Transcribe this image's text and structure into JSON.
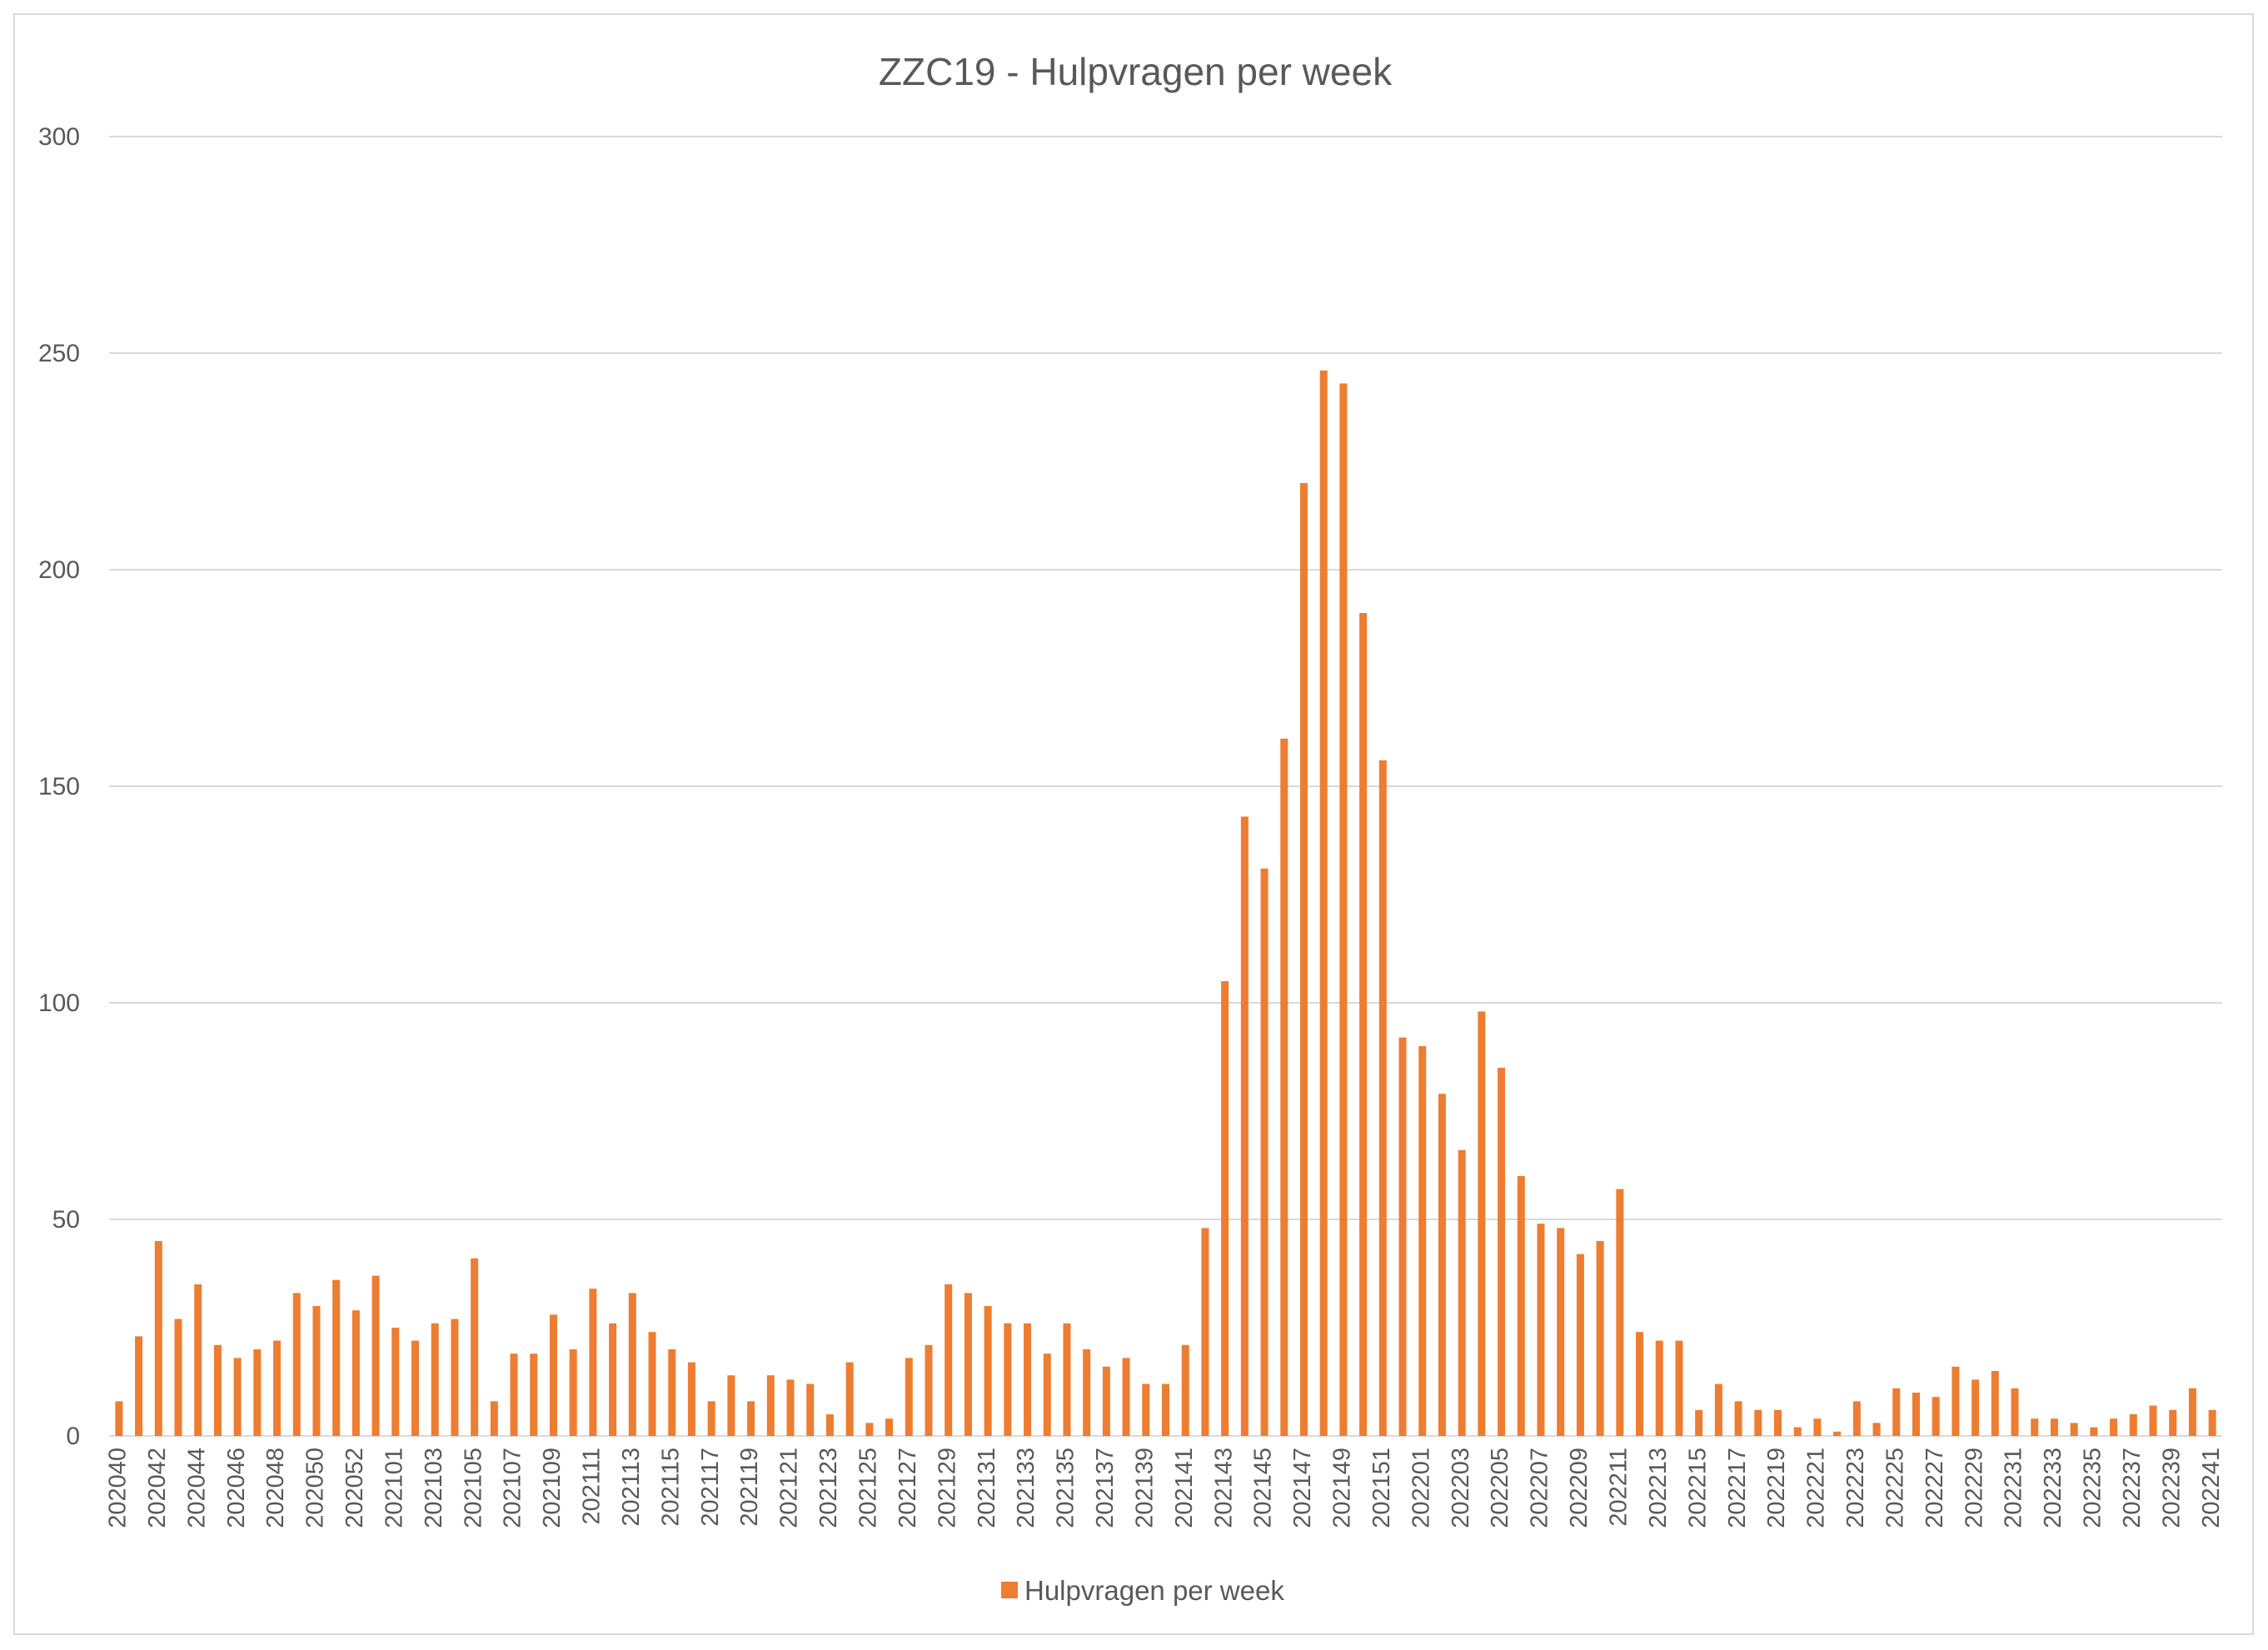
{
  "chart_data": {
    "type": "bar",
    "title": "ZZC19 - Hulpvragen per week",
    "xlabel": "",
    "ylabel": "",
    "ylim": [
      0,
      300
    ],
    "yticks": [
      0,
      50,
      100,
      150,
      200,
      250,
      300
    ],
    "grid": true,
    "legend_position": "bottom",
    "bar_color": "#ED7D31",
    "categories": [
      "202040",
      "202041",
      "202042",
      "202043",
      "202044",
      "202045",
      "202046",
      "202047",
      "202048",
      "202049",
      "202050",
      "202051",
      "202052",
      "202053",
      "202101",
      "202102",
      "202103",
      "202104",
      "202105",
      "202106",
      "202107",
      "202108",
      "202109",
      "202110",
      "202111",
      "202112",
      "202113",
      "202114",
      "202115",
      "202116",
      "202117",
      "202118",
      "202119",
      "202120",
      "202121",
      "202122",
      "202123",
      "202124",
      "202125",
      "202126",
      "202127",
      "202128",
      "202129",
      "202130",
      "202131",
      "202132",
      "202133",
      "202134",
      "202135",
      "202136",
      "202137",
      "202138",
      "202139",
      "202140",
      "202141",
      "202142",
      "202143",
      "202144",
      "202145",
      "202146",
      "202147",
      "202148",
      "202149",
      "202150",
      "202151",
      "202152",
      "202201",
      "202202",
      "202203",
      "202204",
      "202205",
      "202206",
      "202207",
      "202208",
      "202209",
      "202210",
      "202211",
      "202212",
      "202213",
      "202214",
      "202215",
      "202216",
      "202217",
      "202218",
      "202219",
      "202220",
      "202221",
      "202222",
      "202223",
      "202224",
      "202225",
      "202226",
      "202227",
      "202228",
      "202229",
      "202230",
      "202231",
      "202232",
      "202233",
      "202234",
      "202235",
      "202236",
      "202237",
      "202238",
      "202239",
      "202240",
      "202241"
    ],
    "tick_labels": [
      "202040",
      "202042",
      "202044",
      "202046",
      "202048",
      "202050",
      "202052",
      "202101",
      "202103",
      "202105",
      "202107",
      "202109",
      "202111",
      "202113",
      "202115",
      "202117",
      "202119",
      "202121",
      "202123",
      "202125",
      "202127",
      "202129",
      "202131",
      "202133",
      "202135",
      "202137",
      "202139",
      "202141",
      "202143",
      "202145",
      "202147",
      "202149",
      "202151",
      "202201",
      "202203",
      "202205",
      "202207",
      "202209",
      "202211",
      "202213",
      "202215",
      "202217",
      "202219",
      "202221",
      "202223",
      "202225",
      "202227",
      "202229",
      "202231",
      "202233",
      "202235",
      "202237",
      "202239",
      "202241"
    ],
    "series": [
      {
        "name": "Hulpvragen per week",
        "values": [
          8,
          23,
          45,
          27,
          35,
          21,
          18,
          20,
          22,
          33,
          30,
          36,
          29,
          37,
          25,
          22,
          26,
          27,
          41,
          8,
          19,
          19,
          28,
          20,
          34,
          26,
          33,
          24,
          20,
          17,
          8,
          14,
          8,
          14,
          13,
          12,
          5,
          17,
          3,
          4,
          18,
          21,
          35,
          33,
          30,
          26,
          26,
          19,
          26,
          20,
          16,
          18,
          12,
          12,
          21,
          48,
          105,
          143,
          131,
          161,
          220,
          246,
          243,
          190,
          156,
          92,
          90,
          79,
          66,
          98,
          85,
          60,
          49,
          48,
          42,
          45,
          57,
          24,
          22,
          22,
          6,
          12,
          8,
          6,
          6,
          2,
          4,
          1,
          8,
          3,
          11,
          10,
          9,
          16,
          13,
          15,
          11,
          4,
          4,
          3,
          2,
          4,
          5,
          7,
          6,
          11,
          6
        ]
      }
    ]
  }
}
